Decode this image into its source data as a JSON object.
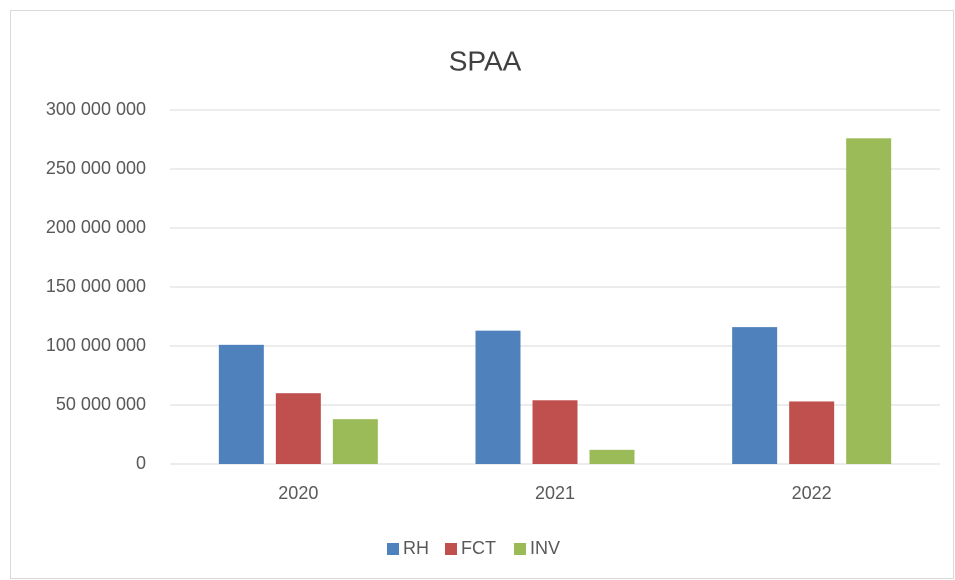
{
  "chart_data": {
    "type": "bar",
    "title": "SPAA",
    "categories": [
      "2020",
      "2021",
      "2022"
    ],
    "series": [
      {
        "name": "RH",
        "color": "#4f81bd",
        "values": [
          101000000,
          113000000,
          116000000
        ]
      },
      {
        "name": "FCT",
        "color": "#c0504d",
        "values": [
          60000000,
          54000000,
          53000000
        ]
      },
      {
        "name": "INV",
        "color": "#9bbb59",
        "values": [
          38000000,
          12000000,
          276000000
        ]
      }
    ],
    "ylim": [
      0,
      300000000
    ],
    "yticks": [
      0,
      {
        "value": 50000000,
        "label": "50 000 000"
      },
      {
        "value": 100000000,
        "label": "100 000 000"
      },
      {
        "value": 150000000,
        "label": "150 000 000"
      },
      {
        "value": 200000000,
        "label": "200 000 000"
      },
      {
        "value": 250000000,
        "label": "250 000 000"
      },
      {
        "value": 300000000,
        "label": "300 000 000"
      }
    ],
    "grid": true,
    "legend": "bottom"
  }
}
